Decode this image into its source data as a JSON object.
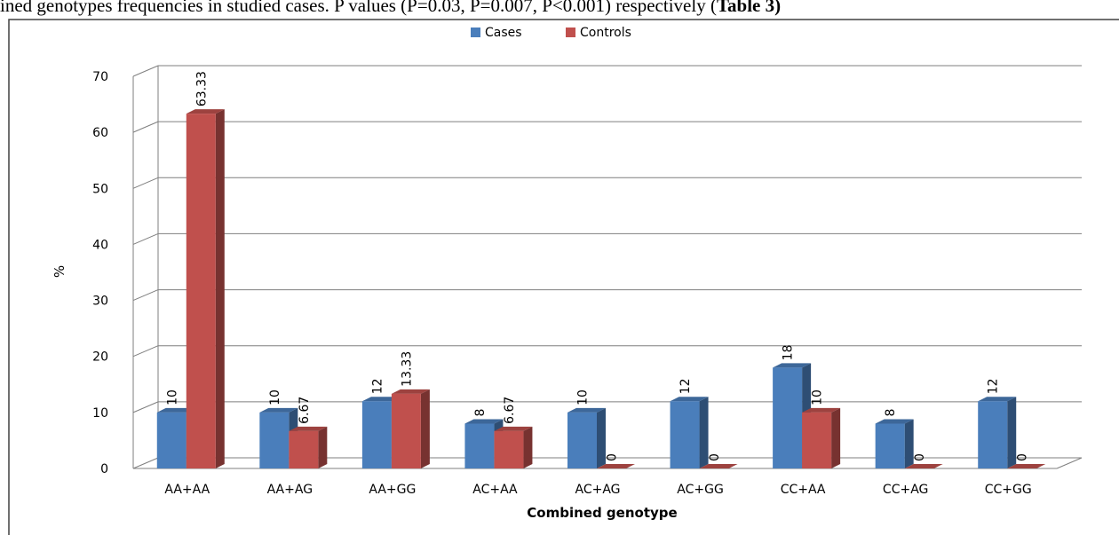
{
  "caption": {
    "text": "ined genotypes frequencies in studied cases. P values (P=0.03, P=0.007, P<0.001) respectively (",
    "bold_ref": "Table 3)"
  },
  "colors": {
    "cases": "#4a7ebb",
    "controls": "#c0504d",
    "grid": "#7f7f7f",
    "frame": "#404040"
  },
  "chart_data": {
    "type": "bar",
    "title": "",
    "xlabel": "Combined genotype",
    "ylabel": "%",
    "ylim": [
      0,
      70
    ],
    "yticks": [
      "0",
      "10",
      "20",
      "30",
      "40",
      "50",
      "60",
      "70"
    ],
    "grid": true,
    "legend_position": "top",
    "categories": [
      "AA+AA",
      "AA+AG",
      "AA+GG",
      "AC+AA",
      "AC+AG",
      "AC+GG",
      "CC+AA",
      "CC+AG",
      "CC+GG"
    ],
    "series": [
      {
        "name": "Cases",
        "values": [
          10,
          10,
          12,
          8,
          10,
          12,
          18,
          8,
          12
        ],
        "labels": [
          "10",
          "10",
          "12",
          "8",
          "10",
          "12",
          "18",
          "8",
          "12"
        ]
      },
      {
        "name": "Controls",
        "values": [
          63.33,
          6.67,
          13.33,
          6.67,
          0,
          0,
          10,
          0,
          0
        ],
        "labels": [
          "63.33",
          "6.67",
          "13.33",
          "6.67",
          "0",
          "0",
          "10",
          "0",
          "0"
        ]
      }
    ]
  }
}
